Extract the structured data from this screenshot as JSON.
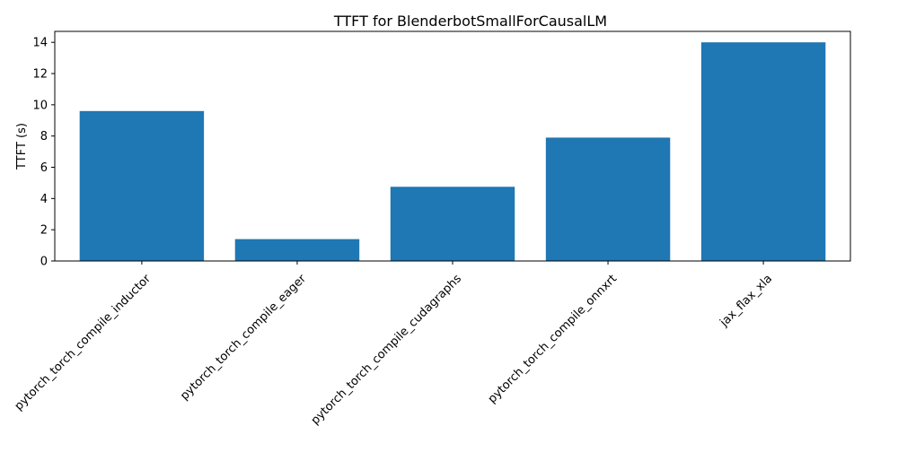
{
  "chart_data": {
    "type": "bar",
    "title": "TTFT for BlenderbotSmallForCausalLM",
    "xlabel": "",
    "ylabel": "TTFT (s)",
    "categories": [
      "pytorch_torch_compile_inductor",
      "pytorch_torch_compile_eager",
      "pytorch_torch_compile_cudagraphs",
      "pytorch_torch_compile_onnxrt",
      "jax_flax_xla"
    ],
    "values": [
      9.6,
      1.4,
      4.75,
      7.9,
      14.0
    ],
    "ylim": [
      0,
      14.7
    ],
    "yticks": [
      0,
      2,
      4,
      6,
      8,
      10,
      12,
      14
    ],
    "ytick_labels": [
      "0",
      "2",
      "4",
      "6",
      "8",
      "10",
      "12",
      "14"
    ],
    "bar_color": "#1f77b4",
    "grid": false,
    "legend": "none"
  }
}
